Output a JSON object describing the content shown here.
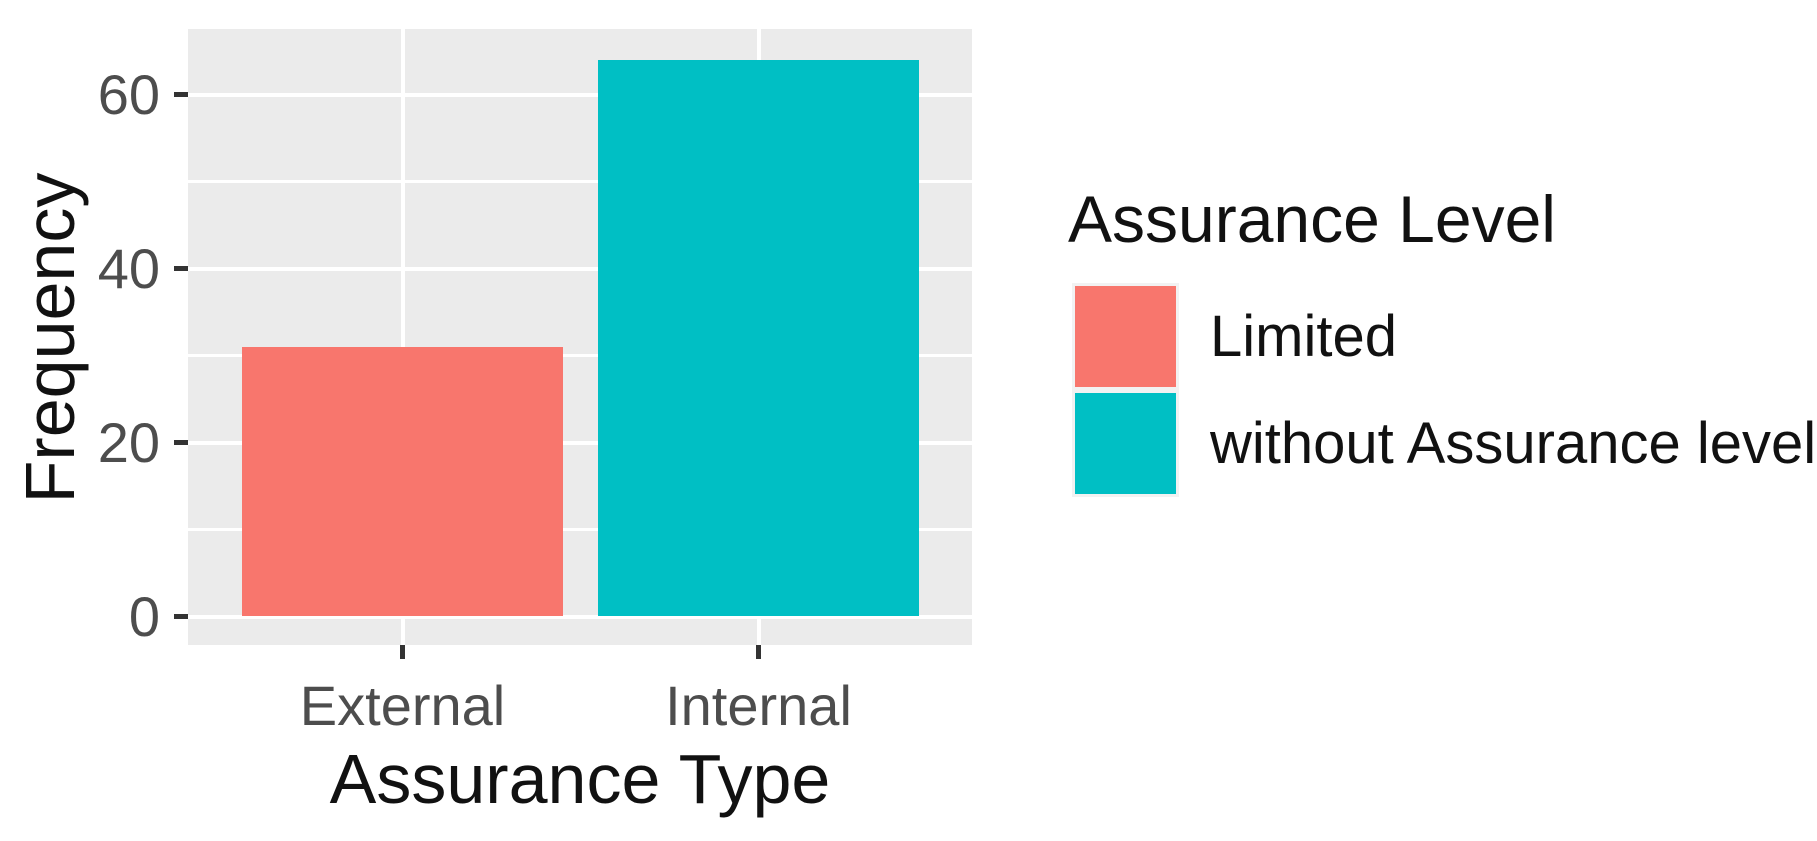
{
  "chart_data": {
    "type": "bar",
    "title": "",
    "xlabel": "Assurance Type",
    "ylabel": "Frequency",
    "categories": [
      "External",
      "Internal"
    ],
    "values": [
      31,
      64
    ],
    "bars": [
      {
        "category": "External",
        "value": 31,
        "legend_group": "Limited",
        "color": "#F8766D"
      },
      {
        "category": "Internal",
        "value": 64,
        "legend_group": "without Assurance level",
        "color": "#00BFC4"
      }
    ],
    "y_ticks": [
      0,
      20,
      40,
      60
    ],
    "y_minor_gridlines": [
      10,
      30,
      50
    ],
    "ylim": [
      -3.2,
      67.2
    ],
    "grid": "major and minor horizontal white gridlines, vertical major gridlines at each category, gray panel",
    "legend": {
      "title": "Assurance Level",
      "position": "right",
      "entries": [
        {
          "label": "Limited",
          "color": "#F8766D"
        },
        {
          "label": "without Assurance level",
          "color": "#00BFC4"
        }
      ]
    }
  },
  "colors": {
    "panel_bg": "#EBEBEB",
    "gridline": "#FFFFFF",
    "tick_mark": "#333333",
    "tick_text": "#4D4D4D",
    "title_text": "#111111",
    "legend_key_bg": "#F2F2F2"
  }
}
